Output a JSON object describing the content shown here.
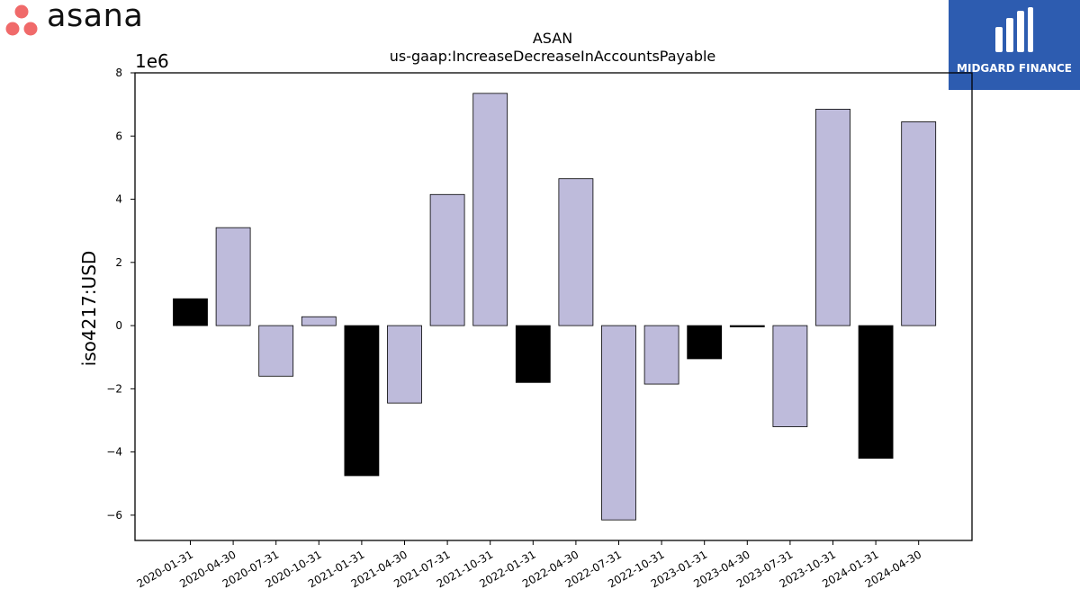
{
  "header": {
    "left_logo": {
      "name": "asana",
      "dot_color": "#f06a6a"
    },
    "right_logo": {
      "name": "MIDGARD FINANCE",
      "bg_color": "#2d5cb0"
    }
  },
  "chart_data": {
    "type": "bar",
    "title": "ASAN",
    "subtitle": "us-gaap:IncreaseDecreaseInAccountsPayable",
    "xlabel": "",
    "ylabel": "iso4217:USD",
    "y_scale_label": "1e6",
    "ylim": [
      -6.8,
      8.0
    ],
    "yticks": [
      -6,
      -4,
      -2,
      0,
      2,
      4,
      6,
      8
    ],
    "ytick_labels": [
      "−6",
      "−4",
      "−2",
      "0",
      "2",
      "4",
      "6",
      "8"
    ],
    "grid": false,
    "colors": {
      "positive_quarter": "#bebbdb",
      "annual": "#000000",
      "edge": "#000000"
    },
    "categories": [
      "2020-01-31",
      "2020-04-30",
      "2020-07-31",
      "2020-10-31",
      "2021-01-31",
      "2021-04-30",
      "2021-07-31",
      "2021-10-31",
      "2022-01-31",
      "2022-04-30",
      "2022-07-31",
      "2022-10-31",
      "2023-01-31",
      "2023-04-30",
      "2023-07-31",
      "2023-10-31",
      "2024-01-31",
      "2024-04-30"
    ],
    "values": [
      0.85,
      3.1,
      -1.6,
      0.28,
      -4.75,
      -2.45,
      4.15,
      7.35,
      -1.8,
      4.65,
      -6.15,
      -1.85,
      -1.05,
      -0.04,
      -3.2,
      6.85,
      -4.2,
      6.45
    ],
    "bar_color_keys": [
      "annual",
      "positive_quarter",
      "positive_quarter",
      "positive_quarter",
      "annual",
      "positive_quarter",
      "positive_quarter",
      "positive_quarter",
      "annual",
      "positive_quarter",
      "positive_quarter",
      "positive_quarter",
      "annual",
      "annual",
      "positive_quarter",
      "positive_quarter",
      "annual",
      "positive_quarter"
    ]
  }
}
